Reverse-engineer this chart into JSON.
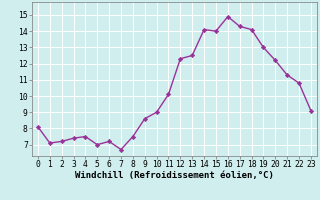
{
  "x": [
    0,
    1,
    2,
    3,
    4,
    5,
    6,
    7,
    8,
    9,
    10,
    11,
    12,
    13,
    14,
    15,
    16,
    17,
    18,
    19,
    20,
    21,
    22,
    23
  ],
  "y": [
    8.1,
    7.1,
    7.2,
    7.4,
    7.5,
    7.0,
    7.2,
    6.7,
    7.5,
    8.6,
    9.0,
    10.1,
    12.3,
    12.5,
    14.1,
    14.0,
    14.9,
    14.3,
    14.1,
    13.0,
    12.2,
    11.3,
    10.8,
    9.1
  ],
  "line_color": "#993399",
  "marker": "D",
  "markersize": 2.2,
  "linewidth": 1.0,
  "xlabel": "Windchill (Refroidissement éolien,°C)",
  "xlabel_fontsize": 6.5,
  "ylabel_ticks": [
    7,
    8,
    9,
    10,
    11,
    12,
    13,
    14,
    15
  ],
  "ylim": [
    6.3,
    15.8
  ],
  "xlim": [
    -0.5,
    23.5
  ],
  "background_color": "#d0eeee",
  "grid_color": "#ffffff",
  "tick_fontsize": 5.8,
  "figwidth": 3.2,
  "figheight": 2.0,
  "dpi": 100
}
